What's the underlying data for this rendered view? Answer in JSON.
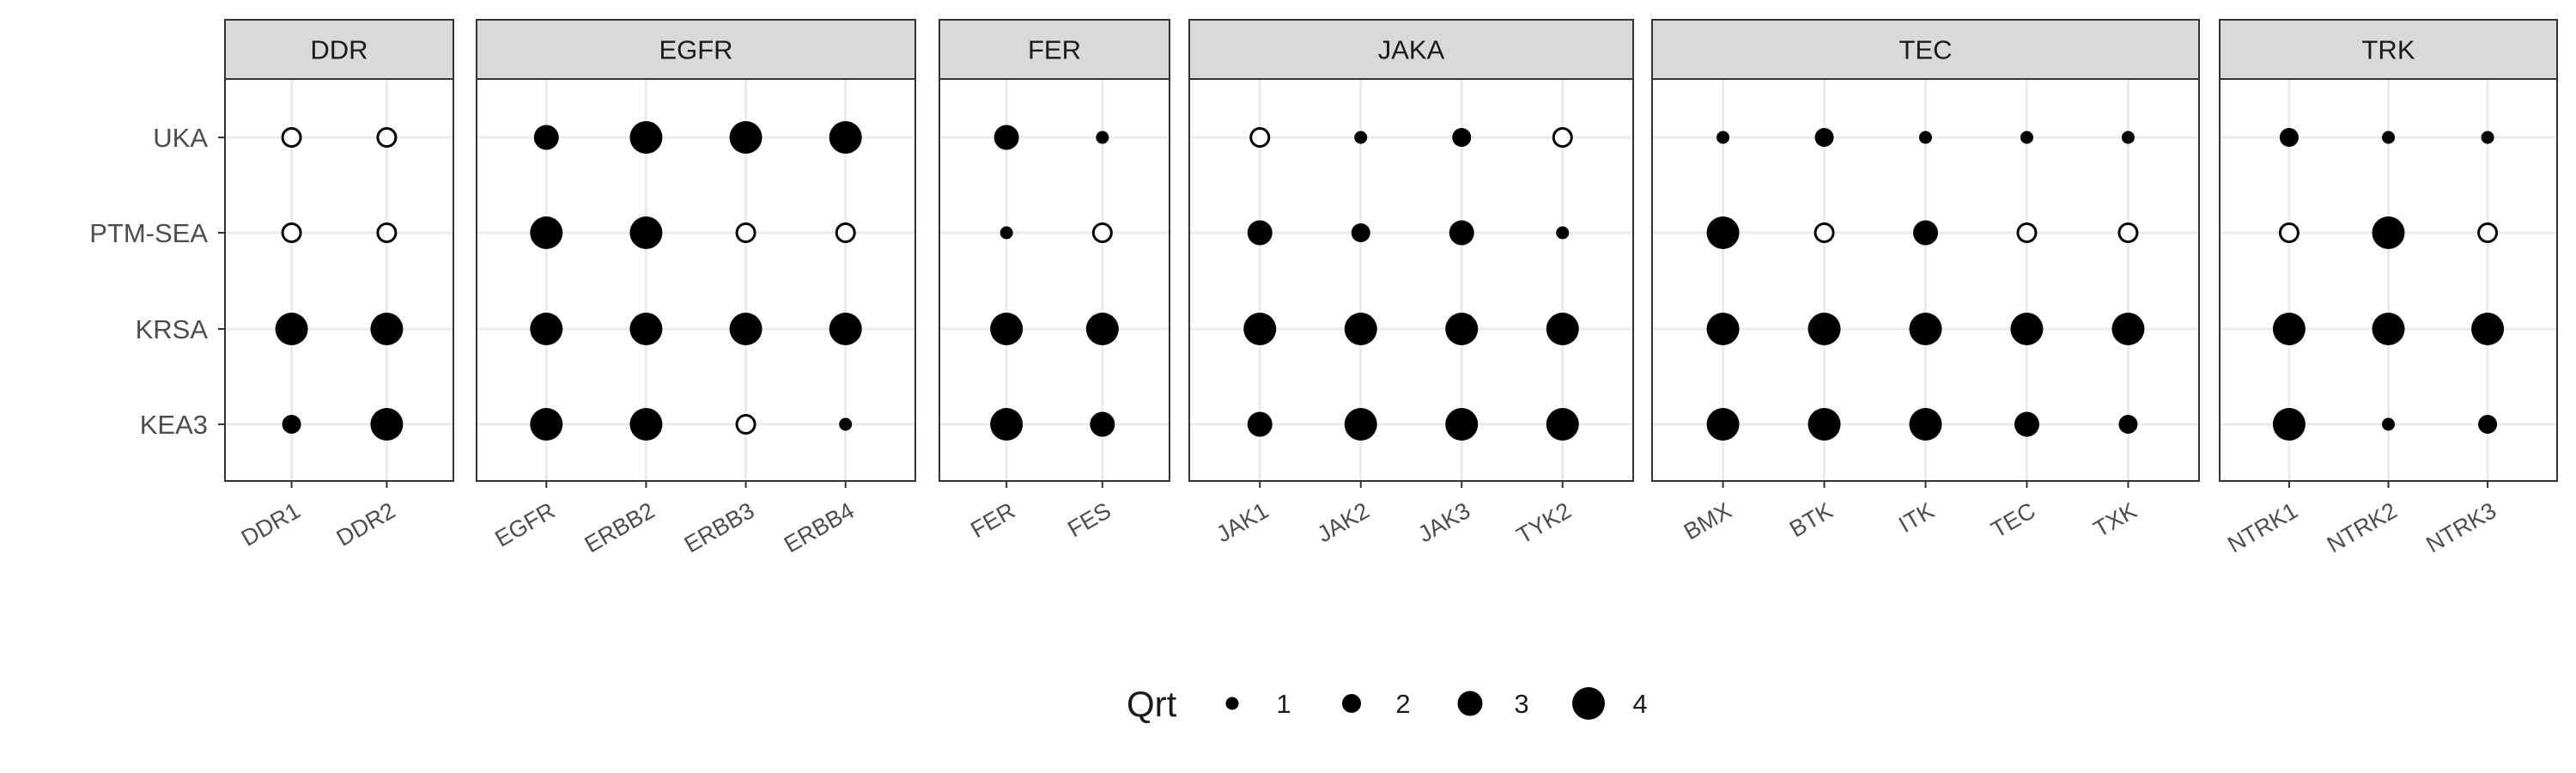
{
  "chart_data": {
    "type": "scatter",
    "title": "",
    "xlabel": "",
    "ylabel": "",
    "y_categories": [
      "UKA",
      "PTM-SEA",
      "KRSA",
      "KEA3"
    ],
    "size_legend": {
      "title": "Qrt",
      "values": [
        1,
        2,
        3,
        4
      ],
      "labels": [
        "1",
        "2",
        "3",
        "4"
      ]
    },
    "open_marker_meaning": "value 0 drawn as hollow circle",
    "grid": true,
    "legend_position": "bottom",
    "colors": {
      "filled": "#000000",
      "open_stroke": "#000000",
      "strip_bg": "#d9d9d9",
      "grid": "#ebebeb",
      "border": "#333333"
    },
    "facets": [
      {
        "name": "DDR",
        "columns": [
          "DDR1",
          "DDR2"
        ],
        "values": {
          "UKA": [
            0,
            0
          ],
          "PTM-SEA": [
            0,
            0
          ],
          "KRSA": [
            4,
            4
          ],
          "KEA3": [
            2,
            4
          ]
        }
      },
      {
        "name": "EGFR",
        "columns": [
          "EGFR",
          "ERBB2",
          "ERBB3",
          "ERBB4"
        ],
        "values": {
          "UKA": [
            3,
            4,
            4,
            4
          ],
          "PTM-SEA": [
            4,
            4,
            0,
            0
          ],
          "KRSA": [
            4,
            4,
            4,
            4
          ],
          "KEA3": [
            4,
            4,
            0,
            1
          ]
        }
      },
      {
        "name": "FER",
        "columns": [
          "FER",
          "FES"
        ],
        "values": {
          "UKA": [
            3,
            1
          ],
          "PTM-SEA": [
            1,
            0
          ],
          "KRSA": [
            4,
            4
          ],
          "KEA3": [
            4,
            3
          ]
        }
      },
      {
        "name": "JAKA",
        "columns": [
          "JAK1",
          "JAK2",
          "JAK3",
          "TYK2"
        ],
        "values": {
          "UKA": [
            0,
            1,
            2,
            0
          ],
          "PTM-SEA": [
            3,
            2,
            3,
            1
          ],
          "KRSA": [
            4,
            4,
            4,
            4
          ],
          "KEA3": [
            3,
            4,
            4,
            4
          ]
        }
      },
      {
        "name": "TEC",
        "columns": [
          "BMX",
          "BTK",
          "ITK",
          "TEC",
          "TXK"
        ],
        "values": {
          "UKA": [
            1,
            2,
            1,
            1,
            1
          ],
          "PTM-SEA": [
            4,
            0,
            3,
            0,
            0
          ],
          "KRSA": [
            4,
            4,
            4,
            4,
            4
          ],
          "KEA3": [
            4,
            4,
            4,
            3,
            2
          ]
        }
      },
      {
        "name": "TRK",
        "columns": [
          "NTRK1",
          "NTRK2",
          "NTRK3"
        ],
        "values": {
          "UKA": [
            2,
            1,
            1
          ],
          "PTM-SEA": [
            0,
            4,
            0
          ],
          "KRSA": [
            4,
            4,
            4
          ],
          "KEA3": [
            4,
            1,
            2
          ]
        }
      }
    ]
  }
}
